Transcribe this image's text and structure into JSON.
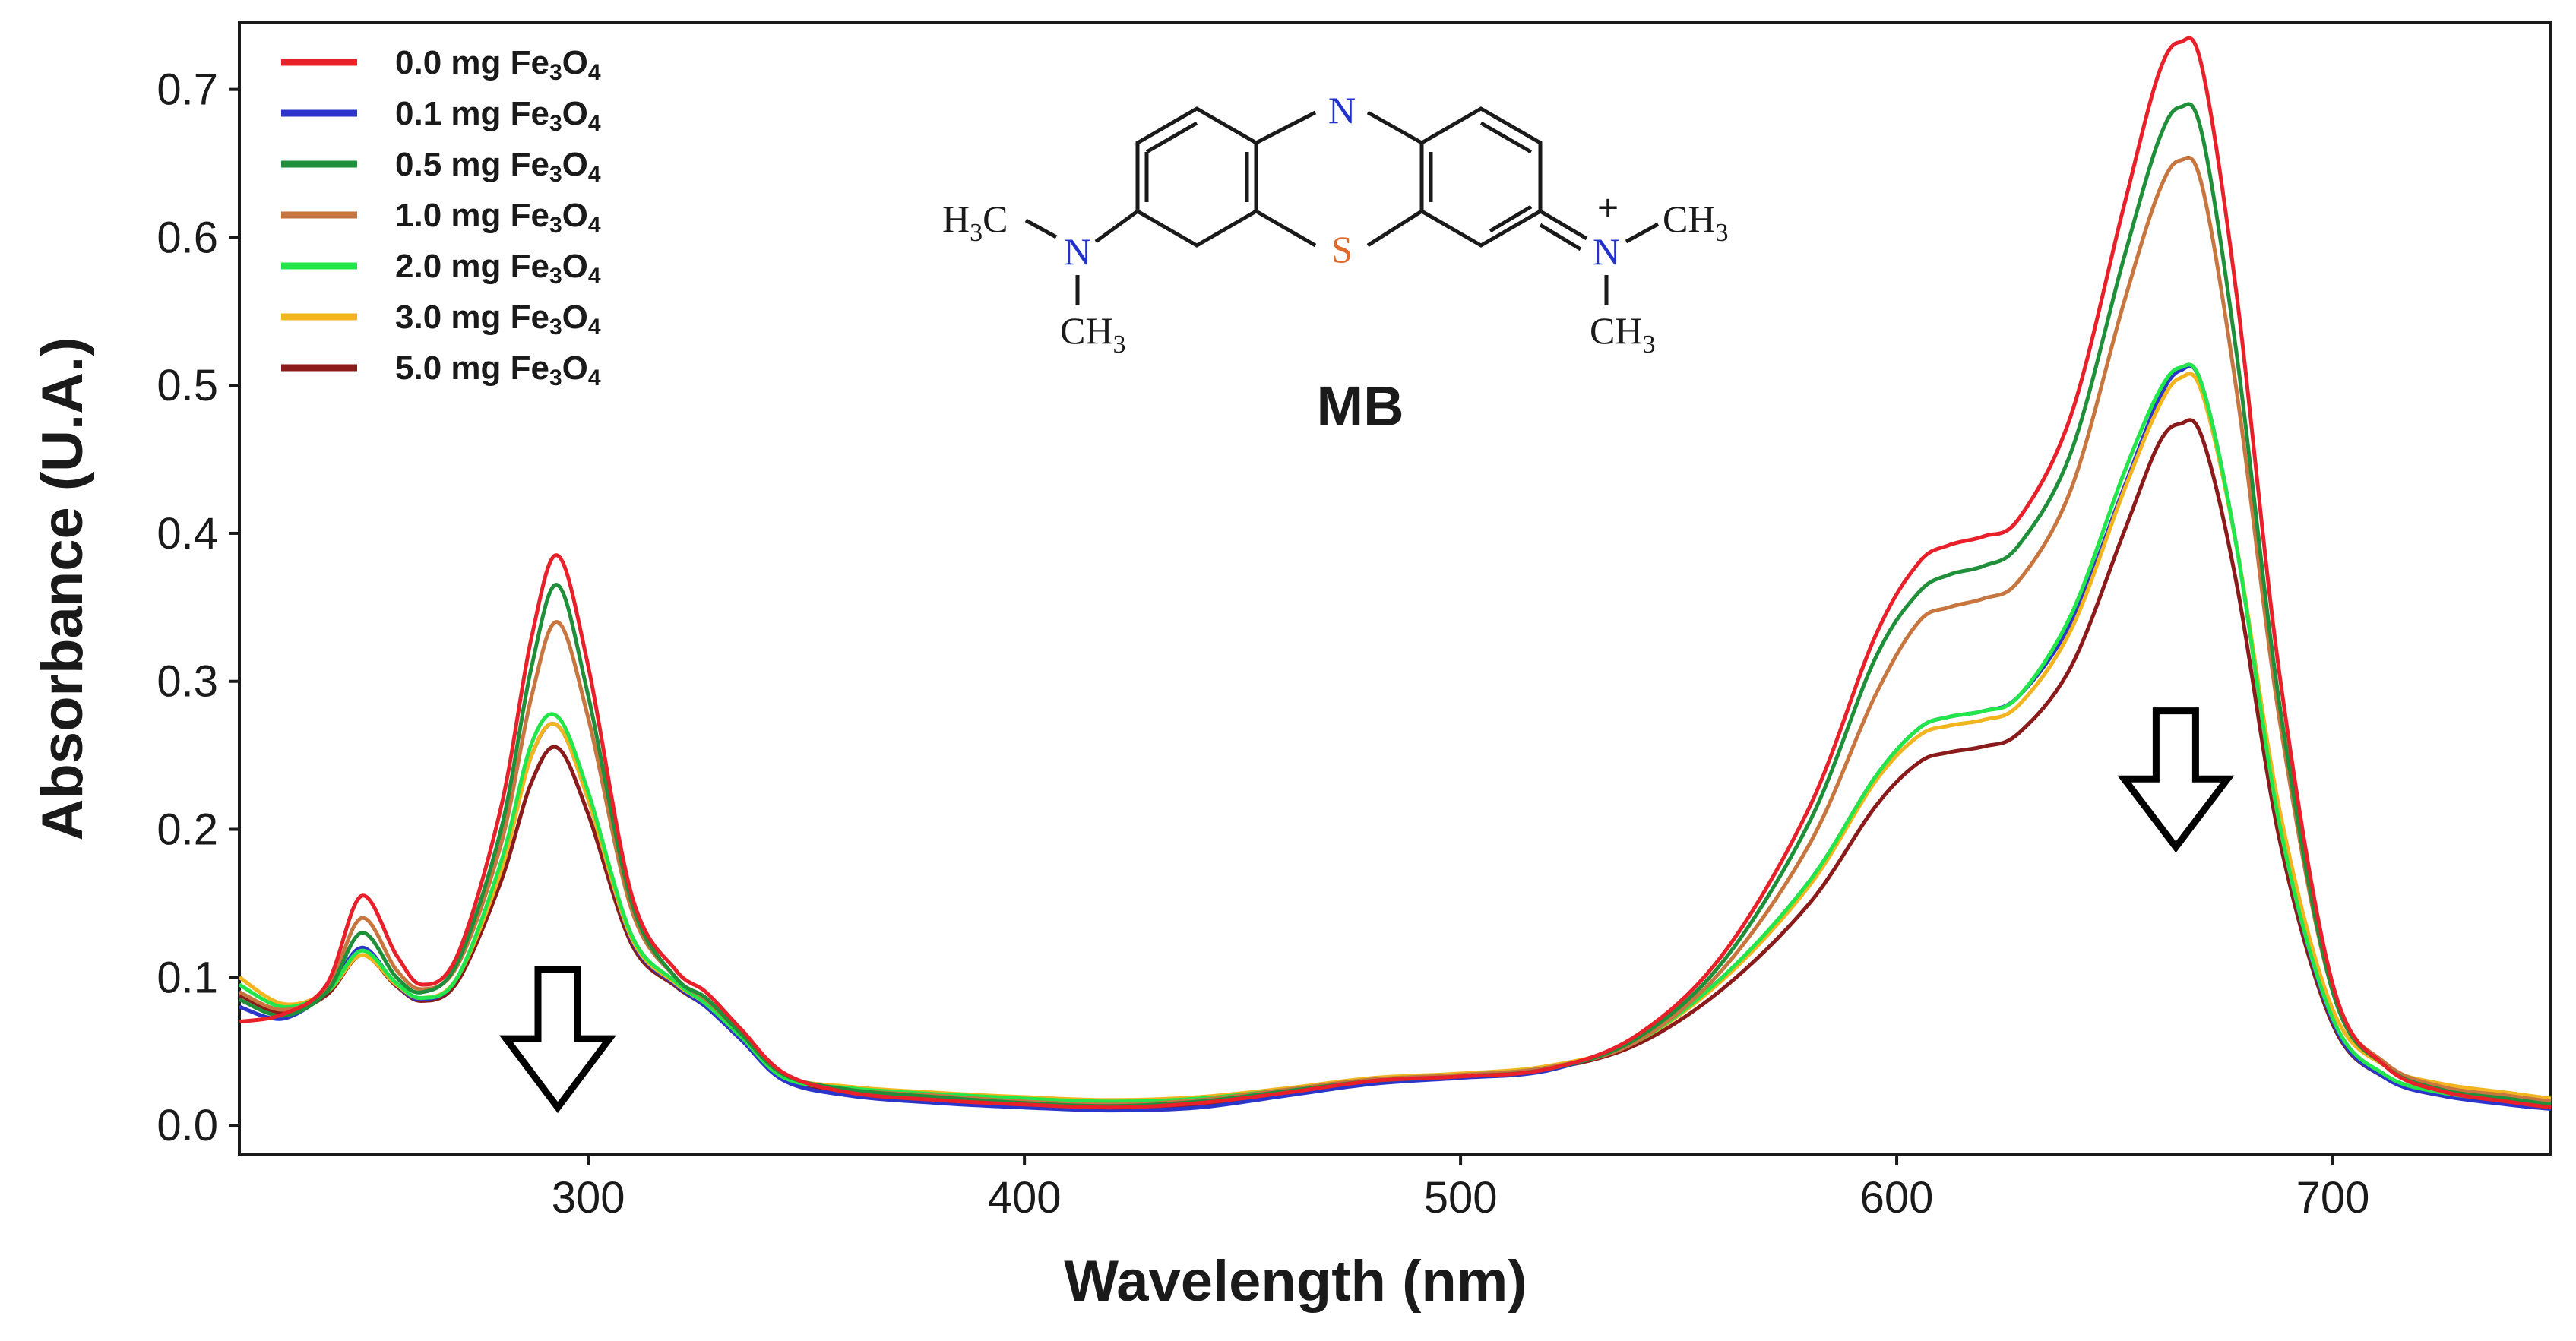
{
  "chart_data": {
    "type": "line",
    "xlabel": "Wavelength (nm)",
    "ylabel": "Absorbance (U.A.)",
    "xlim": [
      220,
      750
    ],
    "ylim": [
      -0.02,
      0.745
    ],
    "xticks": [
      300,
      400,
      500,
      600,
      700
    ],
    "xtick_labels": [
      "300",
      "400",
      "500",
      "600",
      "700"
    ],
    "yticks": [
      0.0,
      0.1,
      0.2,
      0.3,
      0.4,
      0.5,
      0.6,
      0.7
    ],
    "ytick_labels": [
      "0.0",
      "0.1",
      "0.2",
      "0.3",
      "0.4",
      "0.5",
      "0.6",
      "0.7"
    ],
    "legend_position": "top-left",
    "x": [
      220,
      230,
      240,
      248,
      256,
      262,
      270,
      280,
      287,
      293,
      300,
      310,
      320,
      327,
      335,
      345,
      360,
      380,
      400,
      420,
      440,
      460,
      480,
      500,
      520,
      540,
      560,
      580,
      595,
      605,
      612,
      620,
      628,
      640,
      652,
      660,
      665,
      670,
      678,
      688,
      700,
      712,
      725,
      740,
      750
    ],
    "series": [
      {
        "name": "0.0 mg Fe3O4",
        "legend_main": "0.0 mg Fe",
        "legend_sub1": "3",
        "legend_mid": "O",
        "legend_sub2": "4",
        "color": "#e8202a",
        "values": [
          0.07,
          0.075,
          0.095,
          0.155,
          0.115,
          0.095,
          0.115,
          0.215,
          0.33,
          0.385,
          0.31,
          0.155,
          0.105,
          0.09,
          0.065,
          0.035,
          0.022,
          0.017,
          0.014,
          0.012,
          0.015,
          0.022,
          0.03,
          0.033,
          0.038,
          0.06,
          0.115,
          0.215,
          0.33,
          0.38,
          0.392,
          0.398,
          0.41,
          0.48,
          0.62,
          0.71,
          0.732,
          0.715,
          0.56,
          0.3,
          0.095,
          0.04,
          0.023,
          0.016,
          0.012
        ]
      },
      {
        "name": "0.1 mg Fe3O4",
        "legend_main": "0.1 mg Fe",
        "legend_sub1": "3",
        "legend_mid": "O",
        "legend_sub2": "4",
        "color": "#2b35c9",
        "values": [
          0.08,
          0.072,
          0.09,
          0.12,
          0.095,
          0.085,
          0.1,
          0.175,
          0.25,
          0.27,
          0.22,
          0.125,
          0.095,
          0.08,
          0.058,
          0.03,
          0.02,
          0.015,
          0.012,
          0.01,
          0.012,
          0.02,
          0.028,
          0.032,
          0.037,
          0.058,
          0.1,
          0.165,
          0.235,
          0.268,
          0.276,
          0.28,
          0.29,
          0.34,
          0.43,
          0.49,
          0.51,
          0.5,
          0.39,
          0.2,
          0.07,
          0.032,
          0.02,
          0.014,
          0.011
        ]
      },
      {
        "name": "0.5 mg Fe3O4",
        "legend_main": "0.5 mg Fe",
        "legend_sub1": "3",
        "legend_mid": "O",
        "legend_sub2": "4",
        "color": "#1f8f3a",
        "values": [
          0.085,
          0.074,
          0.09,
          0.13,
          0.1,
          0.09,
          0.11,
          0.2,
          0.31,
          0.365,
          0.29,
          0.15,
          0.1,
          0.086,
          0.062,
          0.034,
          0.024,
          0.019,
          0.015,
          0.013,
          0.016,
          0.023,
          0.03,
          0.033,
          0.038,
          0.058,
          0.11,
          0.205,
          0.315,
          0.36,
          0.372,
          0.378,
          0.392,
          0.455,
          0.585,
          0.665,
          0.688,
          0.67,
          0.52,
          0.28,
          0.09,
          0.04,
          0.024,
          0.018,
          0.014
        ]
      },
      {
        "name": "1.0 mg Fe3O4",
        "legend_main": "1.0 mg Fe",
        "legend_sub1": "3",
        "legend_mid": "O",
        "legend_sub2": "4",
        "color": "#c8763f",
        "values": [
          0.09,
          0.078,
          0.092,
          0.14,
          0.105,
          0.092,
          0.108,
          0.19,
          0.29,
          0.34,
          0.275,
          0.145,
          0.1,
          0.085,
          0.062,
          0.034,
          0.024,
          0.02,
          0.016,
          0.014,
          0.017,
          0.024,
          0.031,
          0.034,
          0.039,
          0.056,
          0.105,
          0.19,
          0.29,
          0.34,
          0.35,
          0.356,
          0.368,
          0.43,
          0.555,
          0.63,
          0.652,
          0.635,
          0.495,
          0.27,
          0.09,
          0.042,
          0.026,
          0.02,
          0.016
        ]
      },
      {
        "name": "2.0 mg Fe3O4",
        "legend_main": "2.0 mg Fe",
        "legend_sub1": "3",
        "legend_mid": "O",
        "legend_sub2": "4",
        "color": "#22e64a",
        "values": [
          0.095,
          0.08,
          0.09,
          0.118,
          0.096,
          0.086,
          0.1,
          0.178,
          0.258,
          0.276,
          0.225,
          0.128,
          0.097,
          0.082,
          0.06,
          0.032,
          0.025,
          0.021,
          0.018,
          0.016,
          0.018,
          0.024,
          0.031,
          0.034,
          0.039,
          0.056,
          0.1,
          0.165,
          0.235,
          0.268,
          0.276,
          0.28,
          0.29,
          0.345,
          0.44,
          0.495,
          0.512,
          0.5,
          0.39,
          0.2,
          0.072,
          0.034,
          0.022,
          0.017,
          0.014
        ]
      },
      {
        "name": "3.0 mg Fe3O4",
        "legend_main": "3.0 mg Fe",
        "legend_sub1": "3",
        "legend_mid": "O",
        "legend_sub2": "4",
        "color": "#f2b51f",
        "values": [
          0.1,
          0.082,
          0.09,
          0.115,
          0.095,
          0.086,
          0.1,
          0.172,
          0.25,
          0.27,
          0.22,
          0.126,
          0.096,
          0.082,
          0.06,
          0.033,
          0.026,
          0.022,
          0.019,
          0.017,
          0.019,
          0.025,
          0.032,
          0.035,
          0.04,
          0.056,
          0.098,
          0.162,
          0.232,
          0.263,
          0.27,
          0.274,
          0.284,
          0.335,
          0.428,
          0.485,
          0.505,
          0.495,
          0.39,
          0.21,
          0.078,
          0.04,
          0.028,
          0.022,
          0.018
        ]
      },
      {
        "name": "5.0 mg Fe3O4",
        "legend_main": "5.0 mg Fe",
        "legend_sub1": "3",
        "legend_mid": "O",
        "legend_sub2": "4",
        "color": "#8b1a1a",
        "values": [
          0.088,
          0.076,
          0.088,
          0.115,
          0.094,
          0.084,
          0.097,
          0.165,
          0.232,
          0.255,
          0.21,
          0.122,
          0.094,
          0.08,
          0.058,
          0.031,
          0.022,
          0.017,
          0.014,
          0.012,
          0.014,
          0.021,
          0.029,
          0.033,
          0.038,
          0.054,
          0.092,
          0.15,
          0.215,
          0.245,
          0.252,
          0.256,
          0.265,
          0.31,
          0.4,
          0.46,
          0.474,
          0.465,
          0.365,
          0.19,
          0.068,
          0.032,
          0.02,
          0.015,
          0.012
        ]
      }
    ],
    "annotations": [
      {
        "type": "down-arrow",
        "x": 293,
        "y_top": 0.105,
        "y_bottom": 0.012
      },
      {
        "type": "down-arrow",
        "x": 664,
        "y_top": 0.28,
        "y_bottom": 0.188
      }
    ]
  },
  "molecule": {
    "name": "MB",
    "atom_N_top": "N",
    "atom_S": "S",
    "left_group_main": "H",
    "left_group_sub": "3",
    "left_group_end": "C",
    "left_N": "N",
    "left_down_main": "CH",
    "left_down_sub": "3",
    "right_N": "N",
    "right_charge": "+",
    "right_group_main": "CH",
    "right_group_sub": "3",
    "right_down_main": "CH",
    "right_down_sub": "3"
  },
  "colors": {
    "axis": "#1a1a1a",
    "background": "#ffffff"
  }
}
